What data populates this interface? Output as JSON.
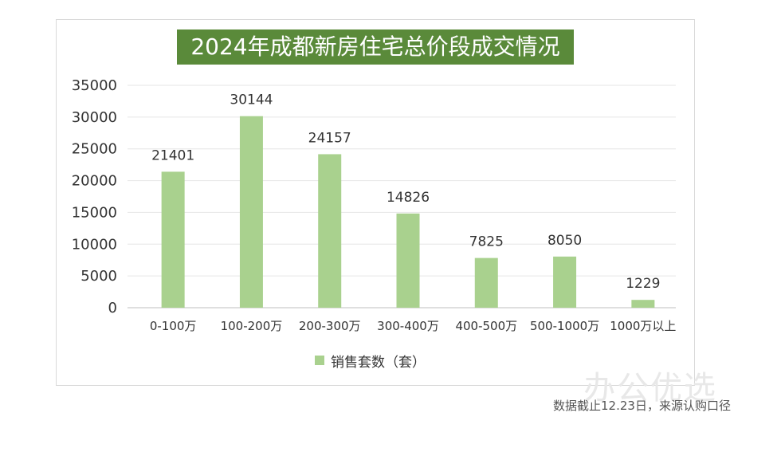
{
  "chart_data": {
    "type": "bar",
    "title": "2024年成都新房住宅总价段成交情况",
    "categories": [
      "0-100万",
      "100-200万",
      "200-300万",
      "300-400万",
      "400-500万",
      "500-1000万",
      "1000万以上"
    ],
    "series": [
      {
        "name": "销售套数（套）",
        "values": [
          21401,
          30144,
          24157,
          14826,
          7825,
          8050,
          1229
        ]
      }
    ],
    "ylim": [
      0,
      35000
    ],
    "yticks": [
      0,
      5000,
      10000,
      15000,
      20000,
      25000,
      30000,
      35000
    ],
    "grid": true,
    "legend": "bottom",
    "color": "#a9d18e"
  },
  "watermark": "办公优选",
  "footnote": "数据截止12.23日，来源认购口径"
}
